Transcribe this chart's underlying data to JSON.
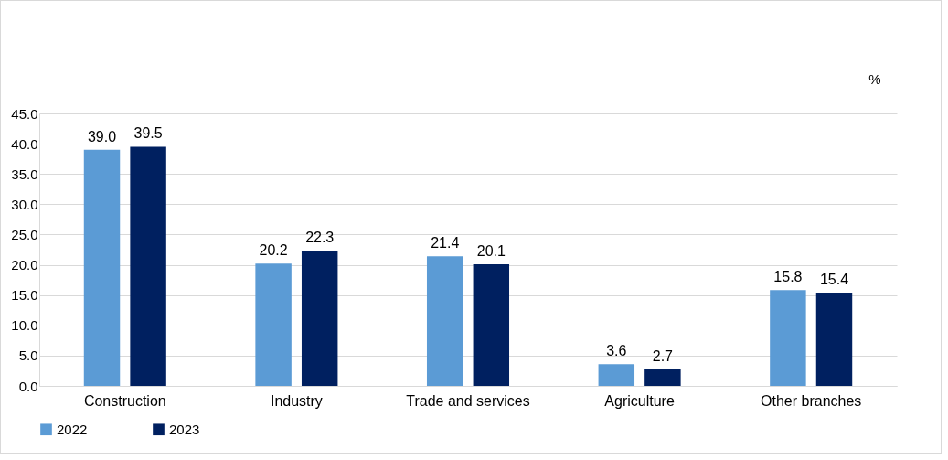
{
  "chart_data": {
    "type": "bar",
    "ylabel": "%",
    "categories": [
      "Construction",
      "Industry",
      "Trade and services",
      "Agriculture",
      "Other branches"
    ],
    "series": [
      {
        "name": "2022",
        "color": "#5b9bd5",
        "values": [
          39.0,
          20.2,
          21.4,
          3.6,
          15.8
        ],
        "value_labels": [
          "39.0",
          "20.2",
          "21.4",
          "3.6",
          "15.8"
        ]
      },
      {
        "name": "2023",
        "color": "#002060",
        "values": [
          39.5,
          22.3,
          20.1,
          2.7,
          15.4
        ],
        "value_labels": [
          "39.5",
          "22.3",
          "20.1",
          "2.7",
          "15.4"
        ]
      }
    ],
    "ylim": [
      0,
      45
    ],
    "yticks": [
      {
        "value": 0,
        "label": "0.0"
      },
      {
        "value": 5,
        "label": "5.0"
      },
      {
        "value": 10,
        "label": "10.0"
      },
      {
        "value": 15,
        "label": "15.0"
      },
      {
        "value": 20,
        "label": "20.0"
      },
      {
        "value": 25,
        "label": "25.0"
      },
      {
        "value": 30,
        "label": "30.0"
      },
      {
        "value": 35,
        "label": "35.0"
      },
      {
        "value": 40,
        "label": "40.0"
      },
      {
        "value": 45,
        "label": "45.0"
      }
    ],
    "grid": "y",
    "legend": "bottom"
  }
}
